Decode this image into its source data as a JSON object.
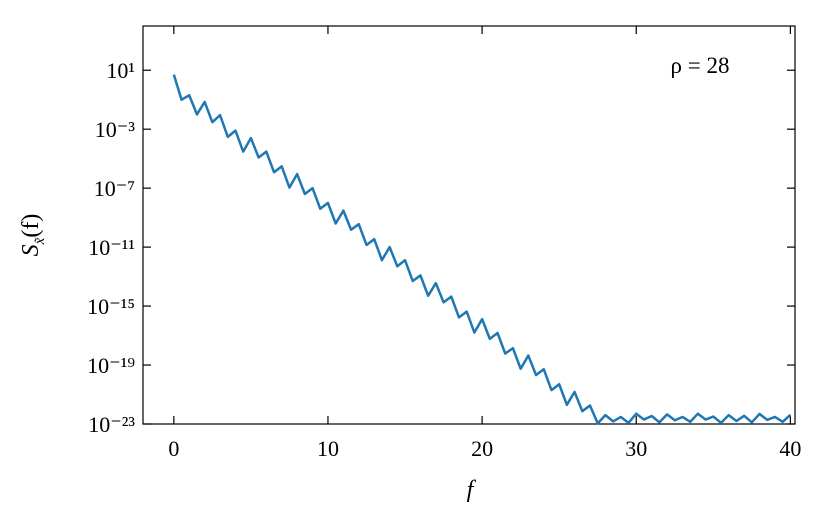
{
  "chart_data": {
    "type": "line",
    "annotation": "ρ = 28",
    "xlabel": "f",
    "ylabel": {
      "main": "S",
      "subscript": "x̃",
      "suffix": "(f)"
    },
    "log_y": true,
    "xlim": [
      -2,
      40.3
    ],
    "ylim": [
      1e-23,
      10000
    ],
    "xticks": [
      0,
      10,
      20,
      30,
      40
    ],
    "yticks": [
      {
        "value": 10,
        "label": "10¹"
      },
      {
        "value": 0.001,
        "label": "10⁻³"
      },
      {
        "value": 1e-07,
        "label": "10⁻⁷"
      },
      {
        "value": 1e-11,
        "label": "10⁻¹¹"
      },
      {
        "value": 1e-15,
        "label": "10⁻¹⁵"
      },
      {
        "value": 1e-19,
        "label": "10⁻¹⁹"
      },
      {
        "value": 1e-23,
        "label": "10⁻²³"
      }
    ],
    "x": [
      0,
      0.5,
      1,
      1.5,
      2,
      2.5,
      3,
      3.5,
      4,
      4.5,
      5,
      5.5,
      6,
      6.5,
      7,
      7.5,
      8,
      8.5,
      9,
      9.5,
      10,
      10.5,
      11,
      11.5,
      12,
      12.5,
      13,
      13.5,
      14,
      14.5,
      15,
      15.5,
      16,
      16.5,
      17,
      17.5,
      18,
      18.5,
      19,
      19.5,
      20,
      20.5,
      21,
      21.5,
      22,
      22.5,
      23,
      23.5,
      24,
      24.5,
      25,
      25.5,
      26,
      26.5,
      27,
      27.5,
      28,
      28.5,
      29,
      29.5,
      30,
      30.5,
      31,
      31.5,
      32,
      32.5,
      33,
      33.5,
      34,
      34.5,
      35,
      35.5,
      36,
      36.5,
      37,
      37.5,
      38,
      38.5,
      39,
      39.5,
      40
    ],
    "series": [
      {
        "color": "#1f77b4",
        "values": [
          5,
          0.1,
          0.2,
          0.01,
          0.07,
          0.003,
          0.009,
          0.0003,
          0.0008,
          3e-05,
          0.00025,
          1.2e-05,
          3e-05,
          1.2e-06,
          3e-06,
          1.1e-07,
          9e-07,
          4e-08,
          1e-07,
          4e-09,
          1e-08,
          4e-10,
          3e-09,
          1.5e-10,
          3.6e-10,
          1.4e-11,
          3.5e-11,
          1.3e-12,
          1e-11,
          5e-13,
          1.3e-12,
          5e-14,
          1.2e-13,
          5e-15,
          3.6e-14,
          1.8e-15,
          4.4e-15,
          1.7e-16,
          4.2e-16,
          1.6e-17,
          1.3e-16,
          6e-18,
          1.5e-17,
          6e-19,
          1.4e-18,
          5.6e-20,
          4.4e-19,
          2.1e-20,
          5.2e-20,
          2e-21,
          5e-21,
          2e-22,
          1.5e-21,
          7.4e-23,
          1.8e-22,
          1.1e-23,
          4e-23,
          1.5e-23,
          3e-23,
          1.2e-23,
          5e-23,
          2e-23,
          3.5e-23,
          1.3e-23,
          4.5e-23,
          1.8e-23,
          3e-23,
          1.4e-23,
          5e-23,
          2e-23,
          3.2e-23,
          1.2e-23,
          4e-23,
          1.6e-23,
          3.6e-23,
          1.3e-23,
          4.8e-23,
          1.9e-23,
          3e-23,
          1.4e-23,
          4.2e-23
        ]
      }
    ]
  }
}
